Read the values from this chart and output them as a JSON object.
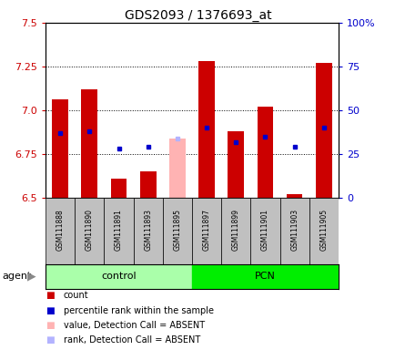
{
  "title": "GDS2093 / 1376693_at",
  "samples": [
    "GSM111888",
    "GSM111890",
    "GSM111891",
    "GSM111893",
    "GSM111895",
    "GSM111897",
    "GSM111899",
    "GSM111901",
    "GSM111903",
    "GSM111905"
  ],
  "red_bar_top": [
    7.06,
    7.12,
    6.61,
    6.65,
    null,
    7.28,
    6.88,
    7.02,
    6.52,
    7.27
  ],
  "pink_bar_top": [
    null,
    null,
    null,
    null,
    6.84,
    null,
    null,
    null,
    null,
    null
  ],
  "blue_dot_y": [
    6.87,
    6.88,
    6.78,
    6.79,
    null,
    6.9,
    6.82,
    6.85,
    6.79,
    6.9
  ],
  "lavender_dot_y": [
    null,
    null,
    null,
    null,
    6.84,
    null,
    null,
    null,
    null,
    null
  ],
  "ymin": 6.5,
  "ymax": 7.5,
  "yticks_left": [
    6.5,
    6.75,
    7.0,
    7.25,
    7.5
  ],
  "yticks_right_vals": [
    0,
    25,
    50,
    75,
    100
  ],
  "yticks_right_labels": [
    "0",
    "25",
    "50",
    "75",
    "100%"
  ],
  "bar_width": 0.55,
  "red_color": "#cc0000",
  "pink_color": "#ffb3b3",
  "blue_color": "#0000cc",
  "lavender_color": "#b3b3ff",
  "control_color": "#aaffaa",
  "pcn_color": "#00ee00",
  "gray_box_color": "#c0c0c0",
  "legend_items": [
    {
      "color": "#cc0000",
      "label": "count"
    },
    {
      "color": "#0000cc",
      "label": "percentile rank within the sample"
    },
    {
      "color": "#ffb3b3",
      "label": "value, Detection Call = ABSENT"
    },
    {
      "color": "#b3b3ff",
      "label": "rank, Detection Call = ABSENT"
    }
  ]
}
